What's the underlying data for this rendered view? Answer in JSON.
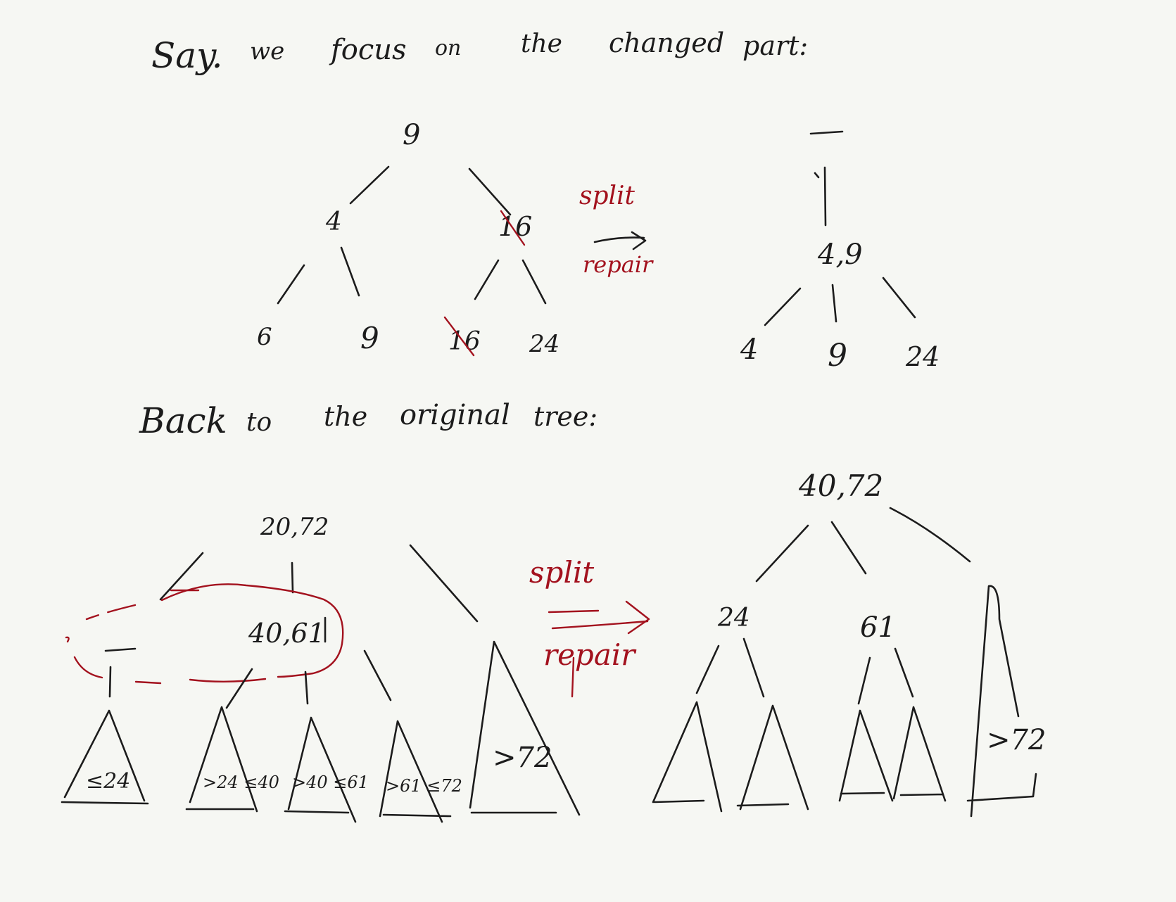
{
  "heading_top": [
    "Say.",
    "we",
    "focus",
    "on",
    "the",
    "changed",
    "part:"
  ],
  "heading_bottom": [
    "Back",
    "to",
    "the",
    "original",
    "tree:"
  ],
  "small_before": {
    "root": "9",
    "left": "4",
    "right": "16",
    "leaves": [
      "6",
      "9",
      "16",
      "24"
    ]
  },
  "small_after": {
    "root": "—",
    "node": "4,9",
    "leaves": [
      "4",
      "9",
      "24"
    ]
  },
  "operation_top": {
    "top": "split",
    "bottom": "repair"
  },
  "operation_bottom": {
    "top": "split",
    "bottom": "repair"
  },
  "big_before": {
    "root": "20,72",
    "underflow_node": "—",
    "sibling": "40,61",
    "subtrees": [
      "≤24",
      ">24 ≤40",
      ">40 ≤61",
      ">61 ≤72",
      ">72"
    ]
  },
  "big_after": {
    "root": "40,72",
    "left": "24",
    "mid": "61",
    "subtrees": [
      "",
      "",
      "",
      "",
      ">72"
    ]
  },
  "colors": {
    "ink": "#1c1c1c",
    "red_ink": "#a3121e",
    "paper": "#f6f7f3"
  }
}
